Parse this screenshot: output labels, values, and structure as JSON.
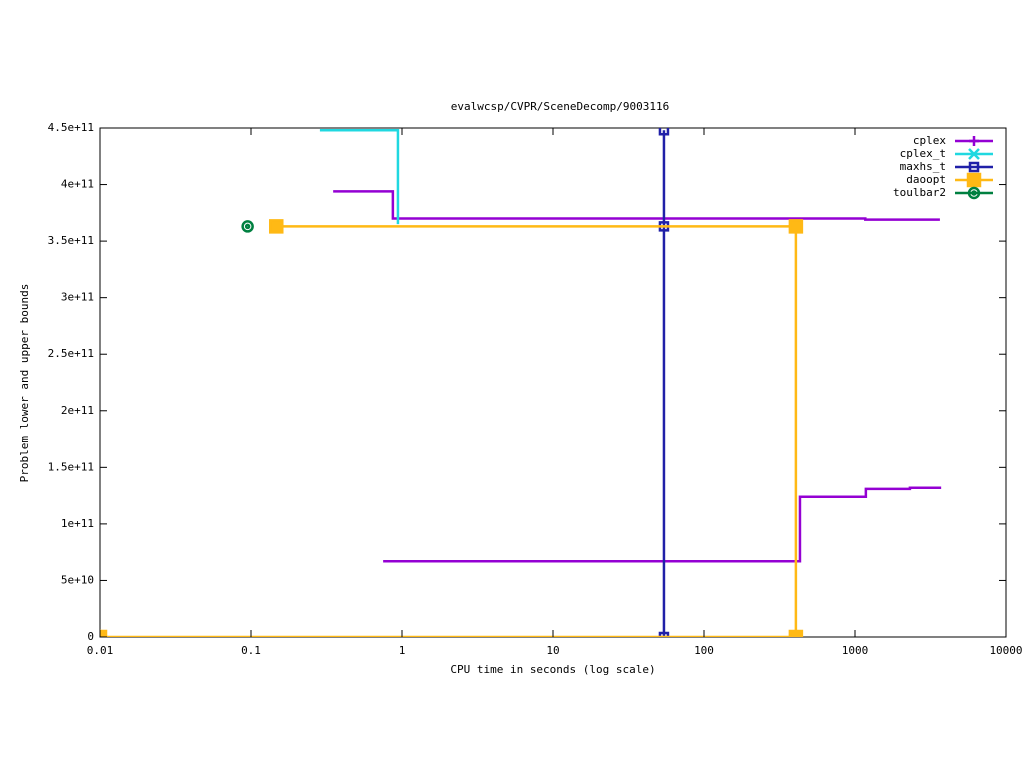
{
  "chart_data": {
    "type": "line",
    "title": "evalwcsp/CVPR/SceneDecomp/9003116",
    "x_label": "CPU time in seconds (log scale)",
    "y_label": "Problem lower and upper bounds",
    "x_scale": "log",
    "steps": true,
    "legend": "top-right",
    "xlim": [
      0.01,
      10000
    ],
    "xticks": [
      0.01,
      0.1,
      1,
      10,
      100,
      1000,
      10000
    ],
    "ylim": [
      0,
      450000000000
    ],
    "yticks": [
      0,
      {
        "value": 50000000000,
        "label": "5e+10"
      },
      {
        "value": 100000000000,
        "label": "1e+11"
      },
      {
        "value": 150000000000,
        "label": "1.5e+11"
      },
      {
        "value": 200000000000,
        "label": "2e+11"
      },
      {
        "value": 250000000000,
        "label": "2.5e+11"
      },
      {
        "value": 300000000000,
        "label": "3e+11"
      },
      {
        "value": 350000000000,
        "label": "3.5e+11"
      },
      {
        "value": 400000000000,
        "label": "4e+11"
      },
      {
        "value": 450000000000,
        "label": "4.5e+11"
      }
    ],
    "series": [
      {
        "name": "cplex",
        "color": "#9400d3",
        "marker": "plus",
        "x": [
          0.35,
          0.87,
          1170,
          3650,
          null,
          0.75,
          432,
          1180,
          2310,
          3650
        ],
        "values": [
          394000000000,
          370000000000,
          369000000000,
          369000000000,
          null,
          67000000000,
          124000000000,
          131000000000,
          132000000000,
          133000000000
        ]
      },
      {
        "name": "cplex_t",
        "color": "#20d8e0",
        "marker": "cross",
        "x": [
          0.286,
          0.94
        ],
        "values": [
          448000000000,
          365000000000
        ]
      },
      {
        "name": "maxhs_t",
        "color": "#2020a8",
        "marker": "square",
        "x": [
          54.3,
          54.3,
          54.3
        ],
        "values": [
          448000000000,
          363000000000,
          0
        ]
      },
      {
        "name": "daoopt",
        "color": "#ffb915",
        "marker": "filled-square",
        "x": [
          0.147,
          406,
          406,
          0.01
        ],
        "values": [
          363000000000,
          363000000000,
          0,
          0
        ]
      },
      {
        "name": "toulbar2",
        "color": "#008040",
        "marker": "circle",
        "x": [
          0.095
        ],
        "values": [
          363000000000
        ]
      }
    ]
  }
}
